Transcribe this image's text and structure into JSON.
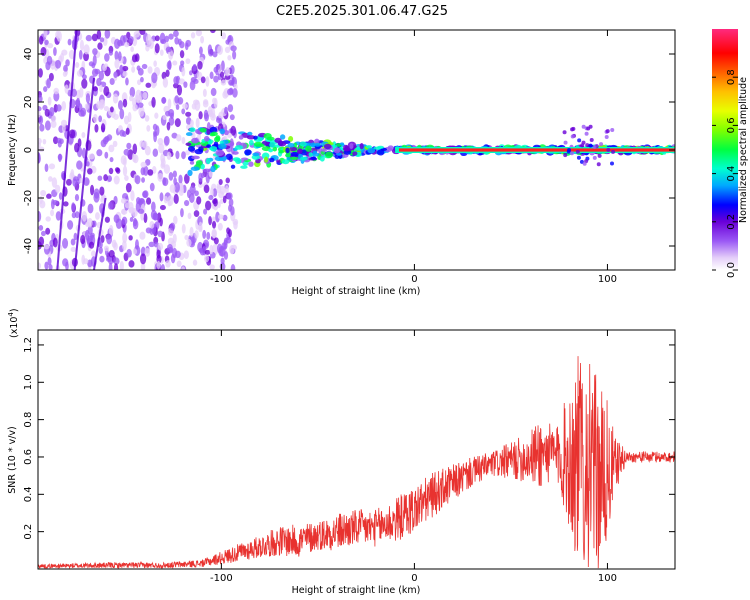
{
  "title": "C2E5.2025.301.06.47.G25",
  "chart_data": [
    {
      "type": "heatmap",
      "title": "C2E5.2025.301.06.47.G25",
      "xlabel": "Height of straight line (km)",
      "ylabel": "Frequency (Hz)",
      "xlim": [
        -195,
        135
      ],
      "ylim": [
        -50,
        50
      ],
      "xticks": [
        -100,
        0,
        100
      ],
      "yticks": [
        -40,
        -20,
        0,
        20,
        40
      ],
      "colorbar": {
        "label": "Normalized spectral amplitude",
        "range": [
          0,
          1
        ],
        "ticks": [
          "0.0",
          "0.2",
          "0.4",
          "0.6",
          "0.8"
        ],
        "tick_values": [
          0.0,
          0.2,
          0.4,
          0.6,
          0.8
        ],
        "colormap": [
          "#ffffff",
          "#9b59f5",
          "#6a00d8",
          "#0000ff",
          "#00bfff",
          "#00ffc0",
          "#00ff00",
          "#c0ff00",
          "#ffff00",
          "#ff9900",
          "#ff0000",
          "#ff2a7f"
        ]
      },
      "features": {
        "noise_region_x": [
          -195,
          -100
        ],
        "signal_start_x": -118,
        "dense_band_x": [
          -10,
          135
        ],
        "band_center_freq": 0
      }
    },
    {
      "type": "line",
      "xlabel": "Height of straight line (km)",
      "ylabel": "SNR (10 * v/v)",
      "y_scale_label": "(x10",
      "y_scale_exponent": "4",
      "xlim": [
        -195,
        135
      ],
      "ylim": [
        0,
        1.28
      ],
      "xticks": [
        -100,
        0,
        100
      ],
      "yticks": [
        0.2,
        0.4,
        0.6,
        0.8,
        1.0,
        1.2
      ],
      "ytick_labels": [
        "0.2",
        "0.4",
        "0.6",
        "0.8",
        "1.0",
        "1.2"
      ],
      "color": "#e8322f",
      "envelope": {
        "x": [
          -195,
          -160,
          -130,
          -110,
          -100,
          -90,
          -80,
          -70,
          -60,
          -50,
          -40,
          -30,
          -20,
          -10,
          0,
          10,
          20,
          30,
          40,
          50,
          60,
          65,
          70,
          75,
          80,
          85,
          88,
          90,
          95,
          100,
          104,
          110,
          120,
          135
        ],
        "mid": [
          0.015,
          0.02,
          0.02,
          0.03,
          0.06,
          0.09,
          0.12,
          0.15,
          0.15,
          0.18,
          0.2,
          0.22,
          0.22,
          0.26,
          0.32,
          0.4,
          0.46,
          0.52,
          0.56,
          0.58,
          0.6,
          0.62,
          0.62,
          0.6,
          0.6,
          0.58,
          0.6,
          0.56,
          0.5,
          0.5,
          0.56,
          0.6,
          0.6,
          0.6
        ],
        "amp": [
          0.01,
          0.015,
          0.015,
          0.02,
          0.035,
          0.05,
          0.06,
          0.08,
          0.09,
          0.08,
          0.1,
          0.1,
          0.1,
          0.12,
          0.13,
          0.12,
          0.1,
          0.08,
          0.07,
          0.1,
          0.14,
          0.2,
          0.16,
          0.18,
          0.4,
          0.58,
          0.6,
          0.56,
          0.52,
          0.4,
          0.15,
          0.03,
          0.03,
          0.03
        ]
      }
    }
  ]
}
